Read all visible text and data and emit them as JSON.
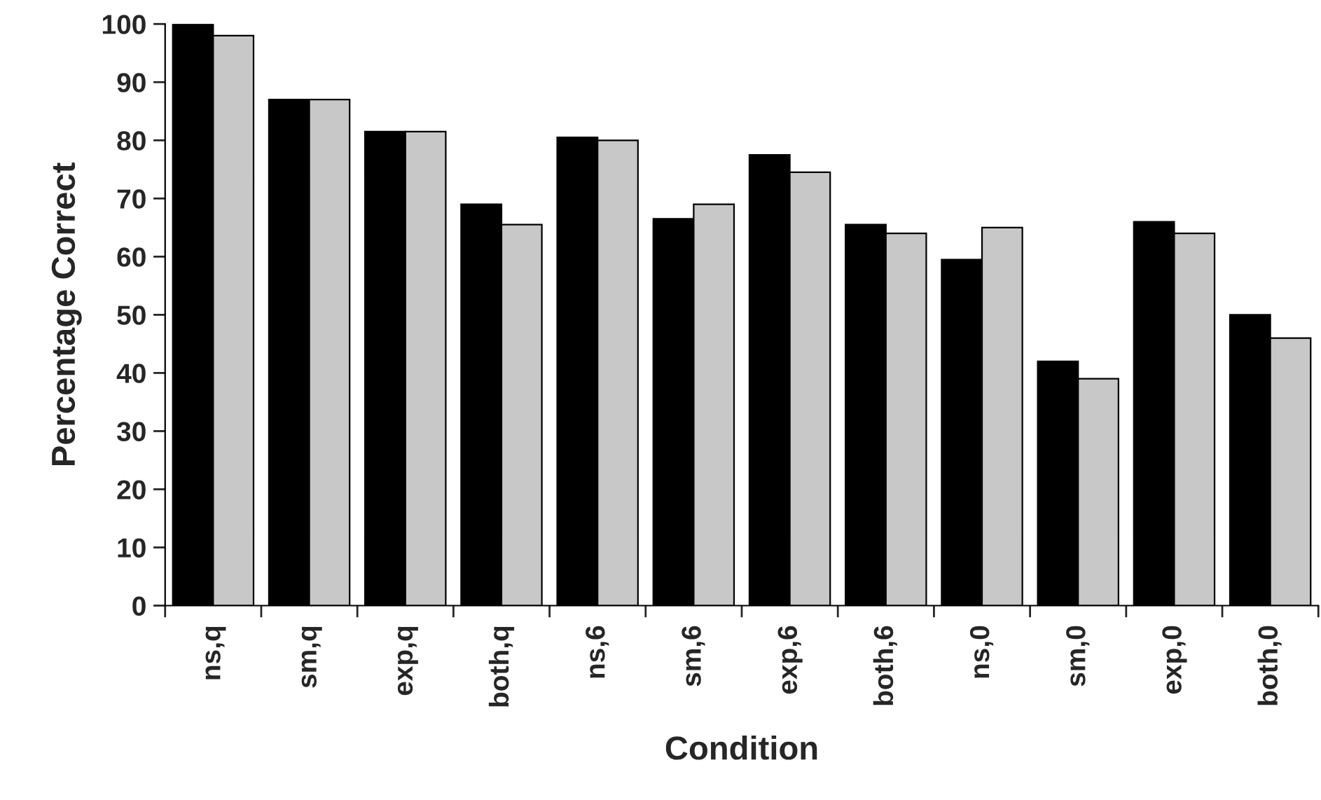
{
  "chart_data": {
    "type": "bar",
    "xlabel": "Condition",
    "ylabel": "Percentage Correct",
    "categories": [
      "ns,q",
      "sm,q",
      "exp,q",
      "both,q",
      "ns,6",
      "sm,6",
      "exp,6",
      "both,6",
      "ns,0",
      "sm,0",
      "exp,0",
      "both,0"
    ],
    "series": [
      {
        "color": "#000000",
        "values": [
          100,
          87,
          81.5,
          69,
          80.5,
          66.5,
          77.5,
          65.5,
          59.5,
          42,
          66,
          50
        ]
      },
      {
        "color": "#c8c8c8",
        "values": [
          98,
          87,
          81.5,
          65.5,
          80,
          69,
          74.5,
          64,
          65,
          39,
          64,
          46
        ]
      }
    ],
    "ylim": [
      0,
      100
    ],
    "yticks": [
      0,
      10,
      20,
      30,
      40,
      50,
      60,
      70,
      80,
      90,
      100
    ],
    "grid": false,
    "legend": false
  }
}
